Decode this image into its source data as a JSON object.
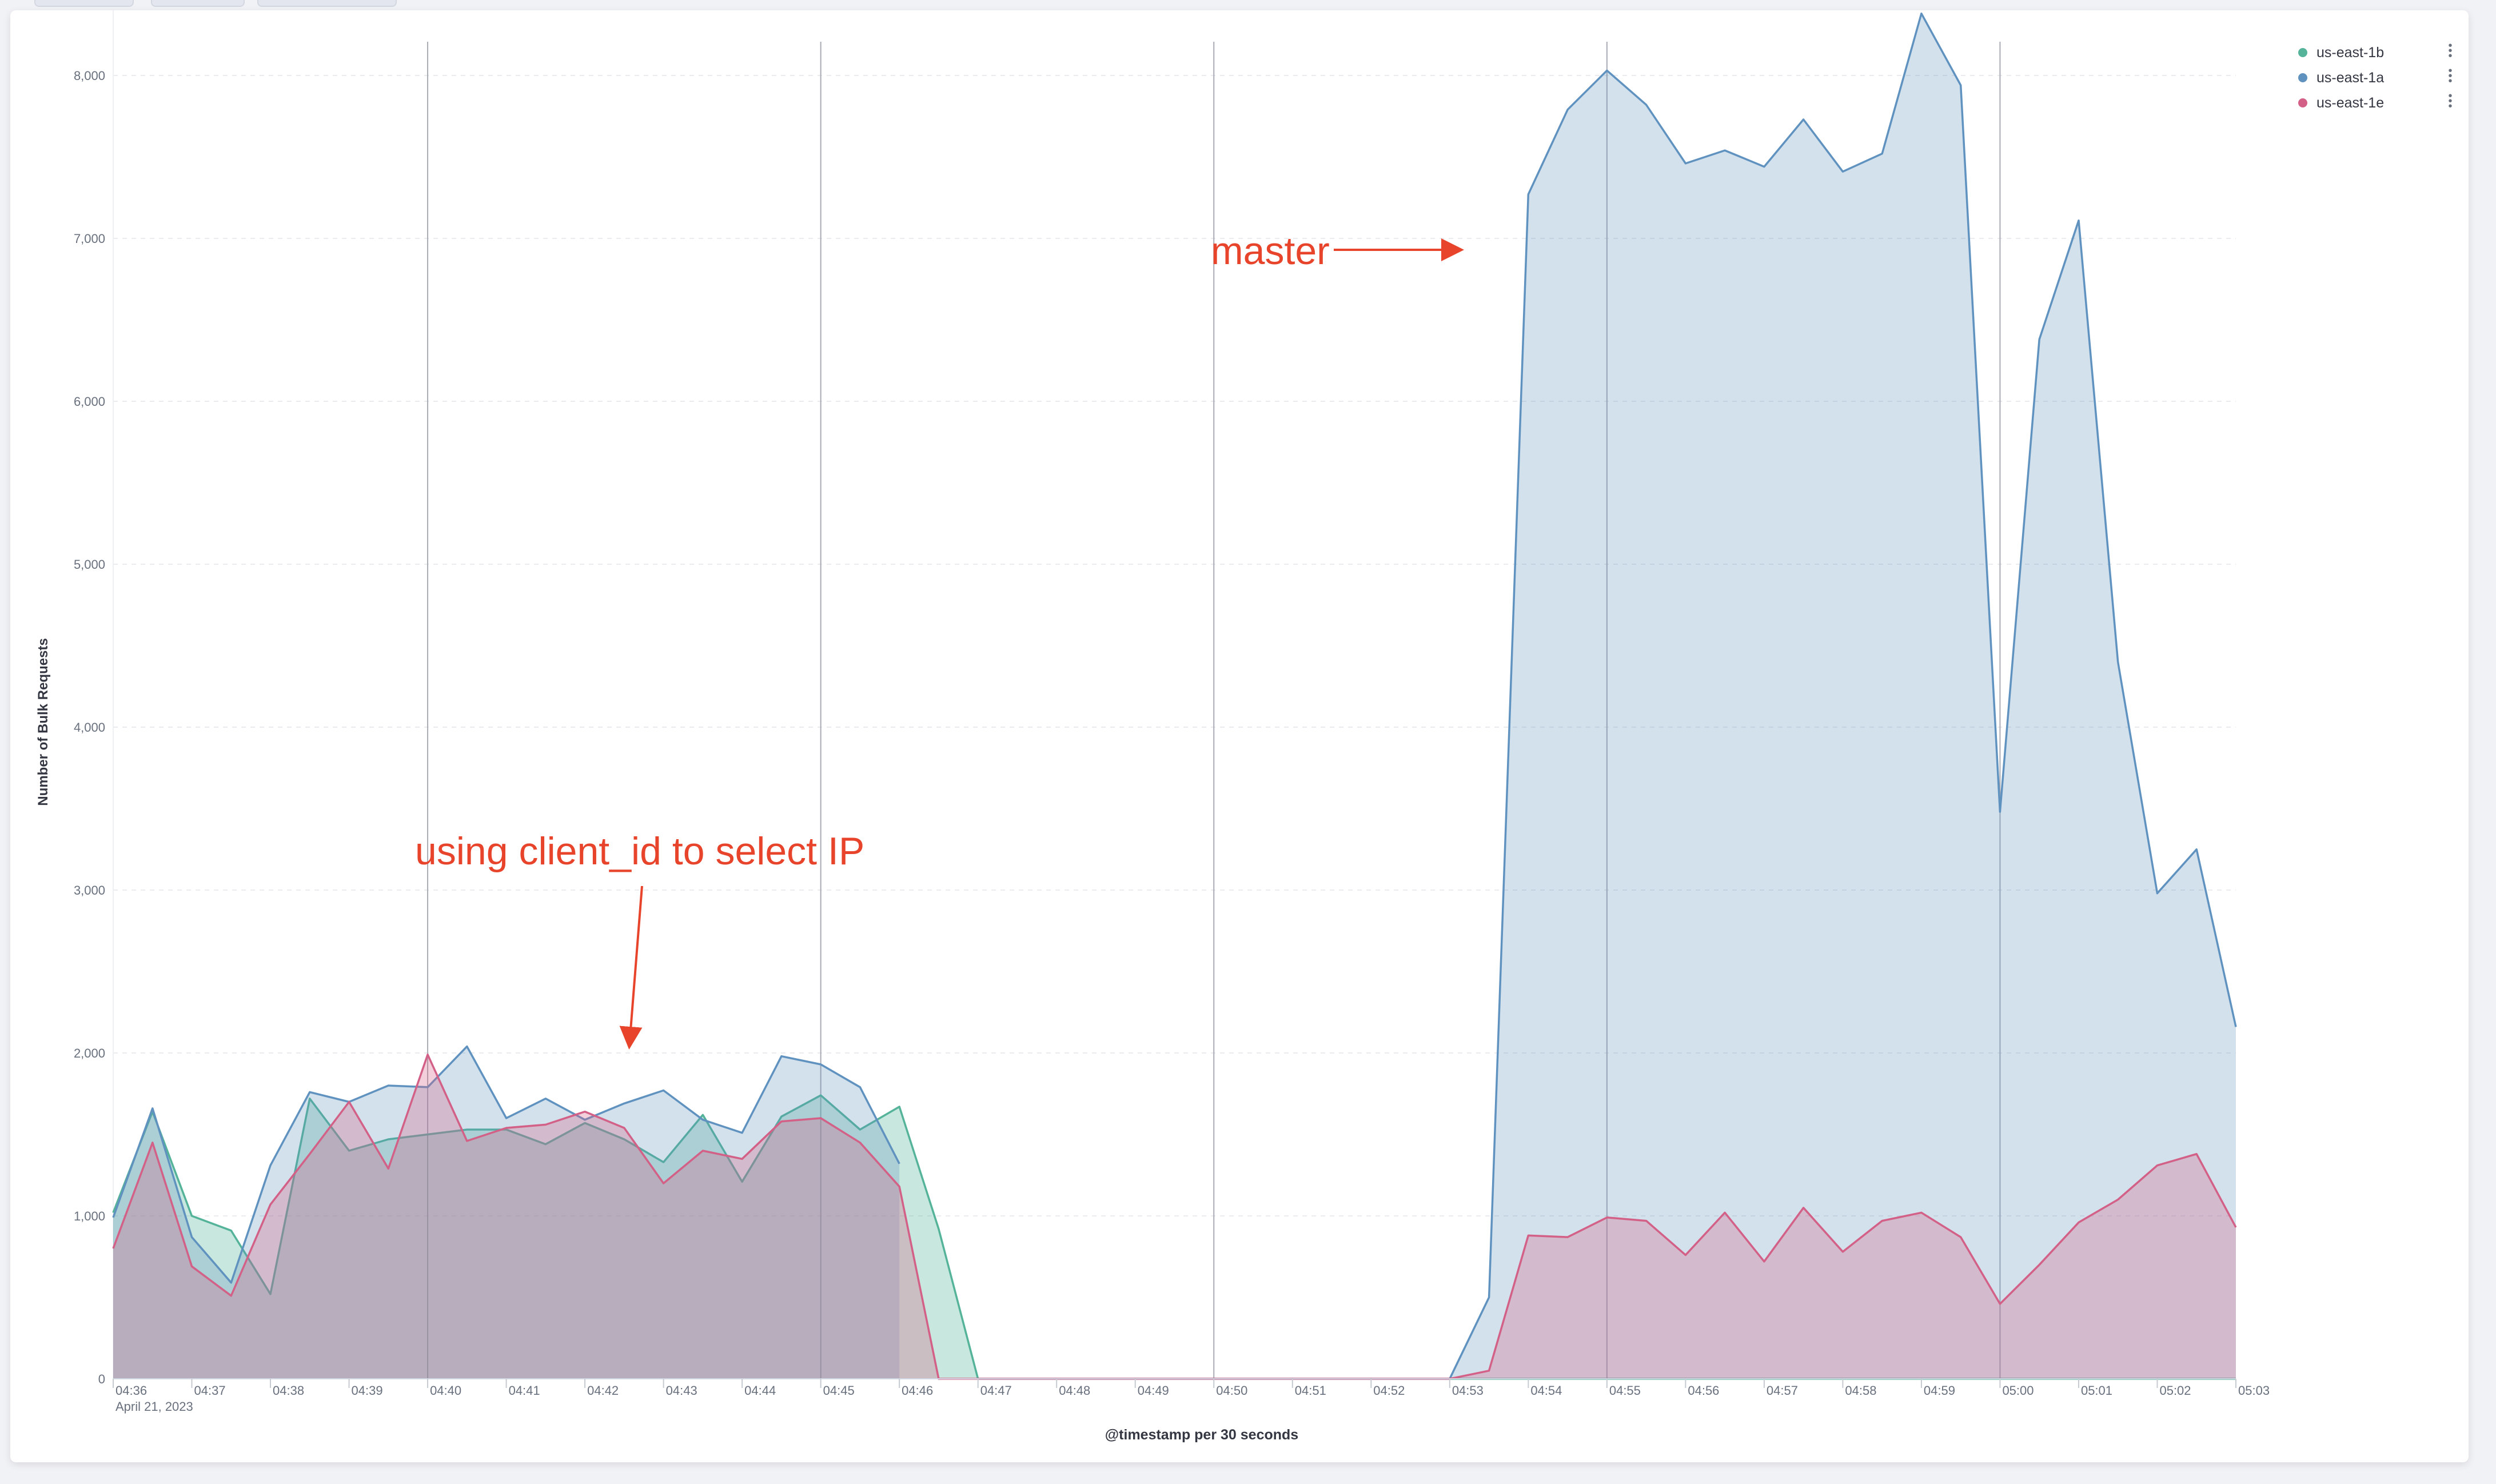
{
  "annotations": [
    {
      "id": "client-id-note",
      "text": "using client_id to select IP"
    },
    {
      "id": "master-note",
      "text": "master"
    }
  ],
  "colors": {
    "annotation": "#e7442b",
    "grid": "#e9ebef",
    "marker": "#a8abb3",
    "axis_text": "#69707d"
  },
  "chart_data": {
    "type": "area",
    "title": "",
    "xlabel": "@timestamp per 30 seconds",
    "ylabel": "Number of Bulk Requests",
    "date_label": "April 21, 2023",
    "ylim": [
      0,
      8400
    ],
    "yticks": [
      0,
      1000,
      2000,
      3000,
      4000,
      5000,
      6000,
      7000,
      8000
    ],
    "ytick_labels": [
      "0",
      "1,000",
      "2,000",
      "3,000",
      "4,000",
      "5,000",
      "6,000",
      "7,000",
      "8,000"
    ],
    "xlim": [
      "04:36:00",
      "05:03:00"
    ],
    "xtick_labels": [
      "04:36",
      "04:37",
      "04:38",
      "04:39",
      "04:40",
      "04:41",
      "04:42",
      "04:43",
      "04:44",
      "04:45",
      "04:46",
      "04:47",
      "04:48",
      "04:49",
      "04:50",
      "04:51",
      "04:52",
      "04:53",
      "04:54",
      "04:55",
      "04:56",
      "04:57",
      "04:58",
      "04:59",
      "05:00",
      "05:01",
      "05:02",
      "05:03"
    ],
    "marker_lines": [
      "04:40",
      "04:45",
      "04:50",
      "04:55",
      "05:00"
    ],
    "grid": true,
    "legend_position": "top-right",
    "x": [
      "04:36:00",
      "04:36:30",
      "04:37:00",
      "04:37:30",
      "04:38:00",
      "04:38:30",
      "04:39:00",
      "04:39:30",
      "04:40:00",
      "04:40:30",
      "04:41:00",
      "04:41:30",
      "04:42:00",
      "04:42:30",
      "04:43:00",
      "04:43:30",
      "04:44:00",
      "04:44:30",
      "04:45:00",
      "04:45:30",
      "04:46:00",
      "04:46:30",
      "04:47:00",
      "04:47:30",
      "04:48:00",
      "04:48:30",
      "04:49:00",
      "04:49:30",
      "04:50:00",
      "04:50:30",
      "04:51:00",
      "04:51:30",
      "04:52:00",
      "04:52:30",
      "04:53:00",
      "04:53:30",
      "04:54:00",
      "04:54:30",
      "04:55:00",
      "04:55:30",
      "04:56:00",
      "04:56:30",
      "04:57:00",
      "04:57:30",
      "04:58:00",
      "04:58:30",
      "04:59:00",
      "04:59:30",
      "05:00:00",
      "05:00:30",
      "05:01:00",
      "05:01:30",
      "05:02:00",
      "05:02:30",
      "05:03:00"
    ],
    "series": [
      {
        "name": "us-east-1b",
        "color": "#54b399",
        "fill": "rgba(84,179,153,0.32)",
        "values": [
          1020,
          1640,
          1000,
          910,
          520,
          1720,
          1400,
          1470,
          1500,
          1530,
          1530,
          1440,
          1570,
          1470,
          1330,
          1620,
          1210,
          1610,
          1740,
          1530,
          1670,
          920,
          0,
          0,
          0,
          0,
          0,
          0,
          0,
          0,
          0,
          0,
          0,
          0,
          0,
          0,
          0,
          0,
          0,
          0,
          0,
          0,
          0,
          0,
          0,
          0,
          0,
          0,
          0,
          0,
          0,
          0,
          0,
          0,
          0
        ]
      },
      {
        "name": "us-east-1a",
        "color": "#6092c0",
        "fill": "rgba(96,146,192,0.28)",
        "values": [
          990,
          1660,
          870,
          590,
          1310,
          1760,
          1700,
          1800,
          1790,
          2040,
          1600,
          1720,
          1590,
          1690,
          1770,
          1590,
          1510,
          1980,
          1930,
          1790,
          1320,
          null,
          0,
          0,
          0,
          0,
          0,
          0,
          0,
          0,
          0,
          0,
          0,
          0,
          0,
          500,
          7270,
          7790,
          8030,
          7820,
          7460,
          7540,
          7440,
          7730,
          7410,
          7520,
          8380,
          7940,
          3480,
          6380,
          7110,
          4400,
          2980,
          3250,
          2160
        ]
      },
      {
        "name": "us-east-1e",
        "color": "#d36086",
        "fill": "rgba(211,96,134,0.30)",
        "values": [
          800,
          1450,
          690,
          510,
          1070,
          1380,
          1700,
          1290,
          1990,
          1460,
          1540,
          1560,
          1640,
          1540,
          1200,
          1400,
          1350,
          1580,
          1600,
          1450,
          1180,
          0,
          0,
          0,
          0,
          0,
          0,
          0,
          0,
          0,
          0,
          0,
          0,
          0,
          0,
          50,
          880,
          870,
          990,
          970,
          760,
          1020,
          720,
          1050,
          780,
          970,
          1020,
          870,
          460,
          700,
          960,
          1100,
          1310,
          1380,
          930
        ]
      }
    ]
  }
}
